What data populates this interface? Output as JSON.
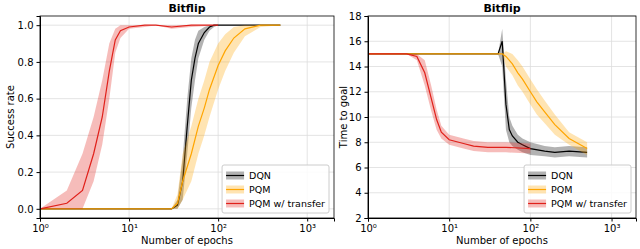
{
  "chart_data": [
    {
      "type": "line",
      "title": "Bitflip",
      "x_label": "Number of epochs",
      "y_label": "Success rate",
      "log": "x",
      "grid": true,
      "legend": "lower right",
      "xlim": [
        1,
        2000
      ],
      "xticks": [
        {
          "value": 1,
          "label": "10⁰"
        },
        {
          "value": 10,
          "label": "10¹"
        },
        {
          "value": 100,
          "label": "10²"
        },
        {
          "value": 1000,
          "label": "10³"
        }
      ],
      "ylim": [
        -0.05,
        1.05
      ],
      "yticks": [
        {
          "value": 0,
          "label": "0.0"
        },
        {
          "value": 0.2,
          "label": "0.2"
        },
        {
          "value": 0.4,
          "label": "0.4"
        },
        {
          "value": 0.6,
          "label": "0.6"
        },
        {
          "value": 0.8,
          "label": "0.8"
        },
        {
          "value": 1,
          "label": "1.0"
        }
      ],
      "series": [
        {
          "name": "DQN",
          "color": "#000000",
          "x": [
            1,
            2,
            5,
            10,
            20,
            30,
            35,
            40,
            45,
            50,
            55,
            60,
            70,
            80,
            90,
            100,
            150,
            200,
            300,
            500
          ],
          "values": [
            0,
            0,
            0,
            0,
            0,
            0,
            0.02,
            0.15,
            0.45,
            0.7,
            0.82,
            0.9,
            0.96,
            0.99,
            1,
            1,
            1,
            1,
            1,
            1
          ],
          "lower": [
            0,
            0,
            0,
            0,
            0,
            0,
            0,
            0.05,
            0.3,
            0.55,
            0.7,
            0.82,
            0.92,
            0.97,
            0.99,
            1,
            1,
            1,
            1,
            1
          ],
          "upper": [
            0,
            0,
            0,
            0,
            0,
            0,
            0.05,
            0.28,
            0.6,
            0.82,
            0.92,
            0.97,
            0.99,
            1,
            1,
            1,
            1,
            1,
            1,
            1
          ]
        },
        {
          "name": "PQM",
          "color": "#ffa500",
          "x": [
            1,
            2,
            5,
            10,
            20,
            30,
            35,
            40,
            50,
            60,
            70,
            80,
            100,
            120,
            150,
            200,
            300,
            500
          ],
          "values": [
            0,
            0,
            0,
            0,
            0,
            0,
            0.03,
            0.15,
            0.3,
            0.45,
            0.55,
            0.65,
            0.78,
            0.86,
            0.93,
            0.98,
            1,
            1
          ],
          "lower": [
            0,
            0,
            0,
            0,
            0,
            0,
            0,
            0.05,
            0.15,
            0.3,
            0.4,
            0.5,
            0.65,
            0.75,
            0.85,
            0.94,
            0.99,
            1
          ],
          "upper": [
            0,
            0,
            0,
            0,
            0,
            0,
            0.08,
            0.3,
            0.45,
            0.6,
            0.7,
            0.8,
            0.9,
            0.95,
            0.99,
            1,
            1,
            1
          ]
        },
        {
          "name": "PQM w/ transfer",
          "color": "#e0201a",
          "x": [
            1,
            2,
            3,
            4,
            5,
            6,
            7,
            8,
            10,
            15,
            20,
            30,
            50,
            100
          ],
          "values": [
            0,
            0.03,
            0.1,
            0.3,
            0.5,
            0.75,
            0.92,
            0.97,
            0.99,
            1,
            1,
            0.99,
            1,
            1
          ],
          "lower": [
            0,
            0,
            0,
            0.15,
            0.35,
            0.6,
            0.85,
            0.93,
            0.98,
            0.99,
            1,
            0.98,
            0.99,
            1
          ],
          "upper": [
            0,
            0.1,
            0.3,
            0.5,
            0.7,
            0.9,
            0.98,
            1,
            1,
            1,
            1,
            1,
            1,
            1
          ]
        }
      ]
    },
    {
      "type": "line",
      "title": "Bitflip",
      "x_label": "Number of epochs",
      "y_label": "Time to goal",
      "log": "x",
      "grid": true,
      "legend": "lower right",
      "xlim": [
        1,
        2000
      ],
      "xticks": [
        {
          "value": 1,
          "label": "10⁰"
        },
        {
          "value": 10,
          "label": "10¹"
        },
        {
          "value": 100,
          "label": "10²"
        },
        {
          "value": 1000,
          "label": "10³"
        }
      ],
      "ylim": [
        2,
        18
      ],
      "yticks": [
        2,
        4,
        6,
        8,
        10,
        12,
        14,
        16,
        18
      ],
      "series": [
        {
          "name": "DQN",
          "color": "#000000",
          "x": [
            1,
            2,
            5,
            10,
            20,
            30,
            40,
            45,
            50,
            55,
            60,
            70,
            80,
            100,
            150,
            200,
            300,
            500
          ],
          "values": [
            15,
            15,
            15,
            15,
            15,
            15,
            15,
            16,
            11,
            9,
            8.5,
            8,
            7.8,
            7.5,
            7.3,
            7.2,
            7.3,
            7.2
          ],
          "lower": [
            15,
            15,
            15,
            15,
            15,
            15,
            15,
            14,
            9,
            8,
            7.7,
            7.4,
            7.2,
            7,
            6.9,
            6.8,
            6.9,
            6.8
          ],
          "upper": [
            15,
            15,
            15,
            15,
            15,
            15,
            15,
            17,
            13,
            10,
            9.3,
            8.6,
            8.3,
            8,
            7.7,
            7.6,
            7.7,
            7.6
          ]
        },
        {
          "name": "PQM",
          "color": "#ffa500",
          "x": [
            1,
            2,
            5,
            10,
            20,
            30,
            40,
            45,
            50,
            60,
            70,
            80,
            100,
            120,
            150,
            200,
            300,
            500
          ],
          "values": [
            15,
            15,
            15,
            15,
            15,
            15,
            15,
            15,
            14.8,
            14.2,
            13.5,
            13,
            12,
            11.2,
            10.4,
            9.4,
            8.3,
            7.5
          ],
          "lower": [
            15,
            15,
            15,
            15,
            15,
            15,
            15,
            15,
            14,
            13.3,
            12.5,
            12,
            11,
            10.2,
            9.5,
            8.6,
            7.8,
            7
          ],
          "upper": [
            15,
            15,
            15,
            15,
            15,
            15,
            15,
            15,
            15.2,
            15,
            14.5,
            14,
            13,
            12.2,
            11.3,
            10.2,
            8.8,
            8
          ]
        },
        {
          "name": "PQM w/ transfer",
          "color": "#e0201a",
          "x": [
            1,
            2,
            3,
            4,
            5,
            6,
            7,
            8,
            10,
            15,
            20,
            30,
            50,
            100
          ],
          "values": [
            15,
            15,
            15,
            14.8,
            13.5,
            11.5,
            9.8,
            8.8,
            8.2,
            7.9,
            7.7,
            7.6,
            7.6,
            7.5
          ],
          "lower": [
            15,
            15,
            15,
            14.5,
            12.5,
            10.5,
            9,
            8.3,
            7.8,
            7.5,
            7.3,
            7.2,
            7.2,
            7.1
          ],
          "upper": [
            15,
            15,
            15,
            15,
            14.5,
            12.5,
            10.6,
            9.3,
            8.6,
            8.3,
            8.1,
            8,
            8,
            7.9
          ]
        }
      ]
    }
  ]
}
